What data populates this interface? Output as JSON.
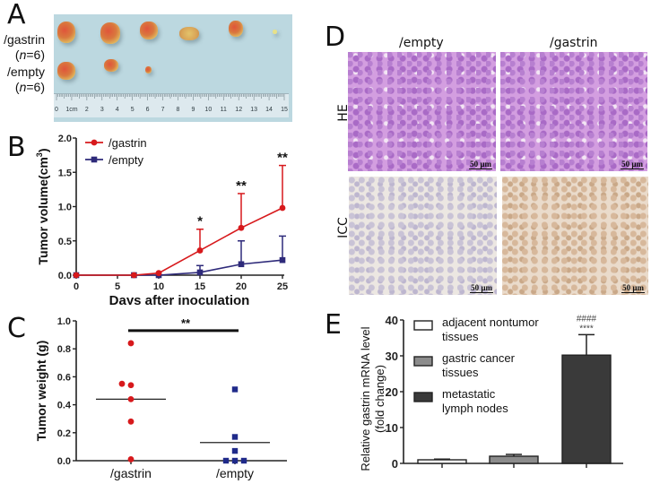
{
  "panels": {
    "A": {
      "letter": "A",
      "groups": [
        {
          "name": "/gastrin",
          "n_label": "(n=6)",
          "n_prefix": "(",
          "n_italic": "n",
          "n_suffix": "=6)"
        },
        {
          "name": "/empty",
          "n_label": "(n=6)",
          "n_prefix": "(",
          "n_italic": "n",
          "n_suffix": "=6)"
        }
      ],
      "ruler_labels": [
        "0",
        "1cm",
        "2",
        "3",
        "4",
        "5",
        "6",
        "7",
        "8",
        "9",
        "10",
        "11",
        "12",
        "13",
        "14",
        "15"
      ],
      "tumor_counts": {
        "gastrin": 6,
        "empty": 3
      }
    },
    "D": {
      "letter": "D",
      "columns": [
        "/empty",
        "/gastrin"
      ],
      "rows": [
        "HE",
        "ICC"
      ],
      "scale_bar": "50 µm"
    }
  },
  "chart_data": [
    {
      "panel": "B",
      "type": "line",
      "xlabel": "Days after inoculation",
      "ylabel": "Tumor volume(cm³)",
      "ylabel_main": "Tumor volume(cm",
      "ylabel_sup": "3",
      "ylabel_end": ")",
      "xlim": [
        0,
        25
      ],
      "ylim": [
        0,
        2.0
      ],
      "xticks": [
        0,
        5,
        10,
        15,
        20,
        25
      ],
      "yticks": [
        "0.0",
        "0.5",
        "1.0",
        "1.5",
        "2.0"
      ],
      "legend_position": "top-left",
      "series": [
        {
          "name": "/gastrin",
          "color": "#d7191c",
          "marker": "circle",
          "x": [
            0,
            7,
            10,
            15,
            20,
            25
          ],
          "y": [
            0,
            0,
            0.03,
            0.36,
            0.69,
            0.98
          ],
          "err_upper": [
            0,
            0,
            0,
            0.67,
            1.19,
            1.6
          ]
        },
        {
          "name": "/empty",
          "color": "#2e2a7a",
          "marker": "square",
          "x": [
            0,
            7,
            10,
            15,
            20,
            25
          ],
          "y": [
            0,
            0,
            0,
            0.04,
            0.16,
            0.22
          ],
          "err_upper": [
            0,
            0,
            0,
            0.14,
            0.5,
            0.57
          ]
        }
      ],
      "annotations": [
        {
          "x": 15,
          "text": "*"
        },
        {
          "x": 20,
          "text": "**"
        },
        {
          "x": 25,
          "text": "**"
        }
      ]
    },
    {
      "panel": "C",
      "type": "scatter",
      "xlabel": "",
      "ylabel": "Tumor weight (g)",
      "ylim": [
        0,
        1.0
      ],
      "yticks": [
        "0.0",
        "0.2",
        "0.4",
        "0.6",
        "0.8",
        "1.0"
      ],
      "categories": [
        "/gastrin",
        "/empty"
      ],
      "series": [
        {
          "name": "/gastrin",
          "color": "#d7191c",
          "marker": "circle",
          "values": [
            0.84,
            0.55,
            0.54,
            0.44,
            0.28,
            0.01
          ],
          "mean": 0.44
        },
        {
          "name": "/empty",
          "color": "#1f2a8a",
          "marker": "square",
          "values": [
            0.51,
            0.17,
            0.07,
            0.0,
            0.0,
            0.0
          ],
          "mean": 0.13
        }
      ],
      "significance": {
        "text": "**",
        "between": [
          "/gastrin",
          "/empty"
        ]
      }
    },
    {
      "panel": "E",
      "type": "bar",
      "ylabel": "Relative gastrin mRNA level",
      "ylabel2": "(fold change)",
      "ylim": [
        0,
        40
      ],
      "yticks": [
        "0",
        "10",
        "20",
        "30",
        "40"
      ],
      "categories": [
        "adjacent nontumor tissues",
        "gastric cancer tissues",
        "metastatic lymph nodes"
      ],
      "legend": [
        {
          "line1": "adjacent nontumor",
          "line2": " tissues",
          "color": "#ffffff"
        },
        {
          "line1": "gastric cancer",
          "line2": " tissues",
          "color": "#8c8c8c"
        },
        {
          "line1": "metastatic",
          "line2": "lymph nodes",
          "color": "#3a3a3a"
        }
      ],
      "values": [
        1.0,
        2.0,
        30.2
      ],
      "err_upper": [
        1.2,
        2.5,
        35.9
      ],
      "annotations": [
        {
          "bar": 2,
          "line1": "####",
          "line2": "****"
        }
      ],
      "legend_position": "top-left"
    }
  ]
}
